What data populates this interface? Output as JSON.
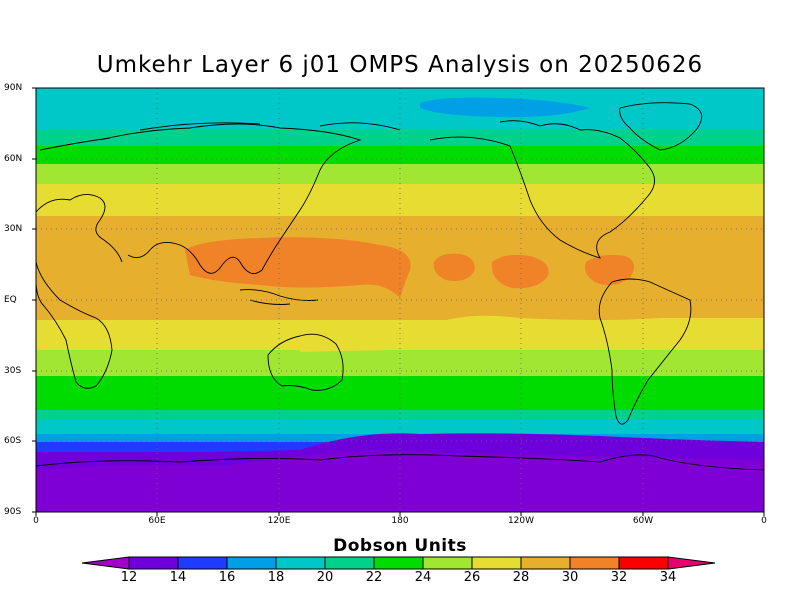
{
  "title": "Umkehr Layer 6 j01 OMPS Analysis on 20250626",
  "map": {
    "lat_labels": [
      "90N",
      "60N",
      "30N",
      "EQ",
      "30S",
      "60S",
      "90S"
    ],
    "lon_labels": [
      "0",
      "60E",
      "120E",
      "180",
      "120W",
      "60W",
      "0"
    ],
    "projection": "cylindrical equidistant",
    "grid": "dotted"
  },
  "colorbar": {
    "title": "Dobson Units",
    "ticks": [
      "12",
      "14",
      "16",
      "18",
      "20",
      "22",
      "24",
      "26",
      "28",
      "30",
      "32",
      "34"
    ],
    "colors": [
      "#a000c8",
      "#6e00dc",
      "#1e3cff",
      "#00a0e6",
      "#00c8c8",
      "#00d28c",
      "#00dc00",
      "#a0e632",
      "#e6dc32",
      "#e6af2d",
      "#f08228",
      "#fa0000",
      "#e6006e"
    ]
  }
}
